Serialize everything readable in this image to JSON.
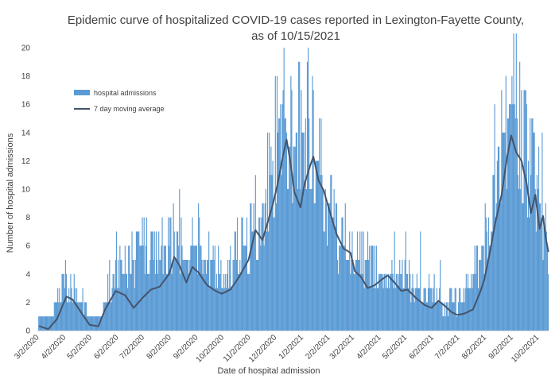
{
  "chart_data": {
    "type": "bar",
    "title_lines": [
      "Epidemic curve of hospitalized COVID-19 cases reported in Lexington-Fayette County,",
      "as of 10/15/2021"
    ],
    "xlabel": "Date of hospital admission",
    "ylabel": "Number of hospital admissions",
    "ylim": [
      0,
      20
    ],
    "y_ticks": [
      0,
      2,
      4,
      6,
      8,
      10,
      12,
      14,
      16,
      18,
      20
    ],
    "x_tick_labels": [
      "3/2/2020",
      "4/2/2020",
      "5/2/2020",
      "6/2/2020",
      "7/2/2020",
      "8/2/2020",
      "9/2/2020",
      "10/2/2020",
      "11/2/2020",
      "12/2/2020",
      "1/2/2021",
      "2/2/2021",
      "3/2/2021",
      "4/2/2021",
      "5/2/2021",
      "6/2/2021",
      "7/2/2021",
      "8/2/2021",
      "9/2/2021",
      "10/2/2021"
    ],
    "x_range": [
      "3/2/2020",
      "10/15/2021"
    ],
    "legend_position": "upper-left",
    "grid": false,
    "series": [
      {
        "name": "hospital admissions",
        "kind": "bar",
        "color": "#5b9bd5",
        "envelope": [
          [
            "3/2/2020",
            0
          ],
          [
            "3/5/2020",
            1
          ],
          [
            "3/20/2020",
            1
          ],
          [
            "4/2/2020",
            4
          ],
          [
            "4/10/2020",
            3
          ],
          [
            "4/25/2020",
            2
          ],
          [
            "5/2/2020",
            1
          ],
          [
            "5/15/2020",
            1
          ],
          [
            "5/25/2020",
            3
          ],
          [
            "6/2/2020",
            5
          ],
          [
            "6/15/2020",
            4
          ],
          [
            "7/2/2020",
            6
          ],
          [
            "7/15/2020",
            5
          ],
          [
            "8/2/2020",
            6
          ],
          [
            "8/10/2020",
            7
          ],
          [
            "8/20/2020",
            5
          ],
          [
            "9/2/2020",
            6
          ],
          [
            "9/15/2020",
            5
          ],
          [
            "10/2/2020",
            4
          ],
          [
            "10/15/2020",
            5
          ],
          [
            "11/2/2020",
            6
          ],
          [
            "11/15/2020",
            8
          ],
          [
            "12/2/2020",
            12
          ],
          [
            "12/10/2020",
            16
          ],
          [
            "12/20/2020",
            13
          ],
          [
            "1/2/2021",
            14
          ],
          [
            "1/10/2021",
            15
          ],
          [
            "1/20/2021",
            12
          ],
          [
            "2/2/2021",
            9
          ],
          [
            "2/15/2021",
            6
          ],
          [
            "3/2/2021",
            5
          ],
          [
            "3/15/2021",
            5
          ],
          [
            "4/2/2021",
            4
          ],
          [
            "4/15/2021",
            4
          ],
          [
            "5/2/2021",
            4
          ],
          [
            "5/15/2021",
            3
          ],
          [
            "6/2/2021",
            3
          ],
          [
            "6/15/2021",
            2
          ],
          [
            "7/2/2021",
            2
          ],
          [
            "7/15/2021",
            3
          ],
          [
            "8/2/2021",
            6
          ],
          [
            "8/15/2021",
            12
          ],
          [
            "9/2/2021",
            16
          ],
          [
            "9/10/2021",
            15
          ],
          [
            "9/20/2021",
            12
          ],
          [
            "10/2/2021",
            10
          ],
          [
            "10/15/2021",
            6
          ]
        ],
        "peaks": [
          [
            "4/2/2020",
            4
          ],
          [
            "5/25/2020",
            5
          ],
          [
            "6/20/2020",
            7
          ],
          [
            "7/25/2020",
            8
          ],
          [
            "8/14/2020",
            10
          ],
          [
            "8/29/2020",
            8
          ],
          [
            "9/5/2020",
            9
          ],
          [
            "10/20/2020",
            8
          ],
          [
            "11/10/2020",
            11
          ],
          [
            "11/28/2020",
            13
          ],
          [
            "12/3/2020",
            18
          ],
          [
            "12/12/2020",
            17
          ],
          [
            "12/22/2020",
            17
          ],
          [
            "1/2/2021",
            17
          ],
          [
            "1/9/2021",
            19
          ],
          [
            "1/16/2021",
            17
          ],
          [
            "1/26/2021",
            11
          ],
          [
            "2/22/2021",
            9
          ],
          [
            "3/20/2021",
            7
          ],
          [
            "4/20/2021",
            7
          ],
          [
            "5/3/2021",
            7
          ],
          [
            "5/20/2021",
            7
          ],
          [
            "6/12/2021",
            5
          ],
          [
            "7/22/2021",
            6
          ],
          [
            "8/4/2021",
            8
          ],
          [
            "8/22/2021",
            17
          ],
          [
            "8/27/2021",
            18
          ],
          [
            "9/3/2021",
            18
          ],
          [
            "9/14/2021",
            17
          ],
          [
            "9/20/2021",
            16
          ],
          [
            "10/2/2021",
            11
          ],
          [
            "10/8/2021",
            14
          ]
        ]
      },
      {
        "name": "7 day moving average",
        "kind": "line",
        "color": "#44546a",
        "points": [
          [
            "3/5/2020",
            0.3
          ],
          [
            "3/15/2020",
            0.1
          ],
          [
            "3/25/2020",
            0.8
          ],
          [
            "4/5/2020",
            2.4
          ],
          [
            "4/12/2020",
            2.2
          ],
          [
            "4/22/2020",
            1.3
          ],
          [
            "5/2/2020",
            0.4
          ],
          [
            "5/12/2020",
            0.3
          ],
          [
            "5/20/2020",
            1.5
          ],
          [
            "6/1/2020",
            2.8
          ],
          [
            "6/12/2020",
            2.5
          ],
          [
            "6/22/2020",
            1.6
          ],
          [
            "7/2/2020",
            2.3
          ],
          [
            "7/12/2020",
            2.9
          ],
          [
            "7/22/2020",
            3.1
          ],
          [
            "8/2/2020",
            4.0
          ],
          [
            "8/8/2020",
            5.2
          ],
          [
            "8/14/2020",
            4.6
          ],
          [
            "8/22/2020",
            3.4
          ],
          [
            "8/29/2020",
            4.5
          ],
          [
            "9/5/2020",
            4.1
          ],
          [
            "9/15/2020",
            3.2
          ],
          [
            "9/25/2020",
            2.8
          ],
          [
            "10/2/2020",
            2.6
          ],
          [
            "10/12/2020",
            2.9
          ],
          [
            "10/22/2020",
            3.8
          ],
          [
            "11/2/2020",
            5.0
          ],
          [
            "11/10/2020",
            7.1
          ],
          [
            "11/18/2020",
            6.4
          ],
          [
            "11/23/2020",
            7.4
          ],
          [
            "11/30/2020",
            8.9
          ],
          [
            "12/5/2020",
            10.2
          ],
          [
            "12/12/2020",
            12.4
          ],
          [
            "12/16/2020",
            13.5
          ],
          [
            "12/20/2020",
            12.1
          ],
          [
            "12/25/2020",
            9.8
          ],
          [
            "1/1/2021",
            8.7
          ],
          [
            "1/6/2021",
            10.4
          ],
          [
            "1/12/2021",
            11.6
          ],
          [
            "1/16/2021",
            12.3
          ],
          [
            "1/22/2021",
            10.6
          ],
          [
            "1/28/2021",
            9.9
          ],
          [
            "2/5/2021",
            8.2
          ],
          [
            "2/12/2021",
            6.8
          ],
          [
            "2/20/2021",
            5.8
          ],
          [
            "2/28/2021",
            5.5
          ],
          [
            "3/5/2021",
            4.2
          ],
          [
            "3/12/2021",
            3.8
          ],
          [
            "3/20/2021",
            3.0
          ],
          [
            "3/28/2021",
            3.2
          ],
          [
            "4/5/2021",
            3.6
          ],
          [
            "4/12/2021",
            3.9
          ],
          [
            "4/20/2021",
            3.4
          ],
          [
            "4/28/2021",
            2.8
          ],
          [
            "5/5/2021",
            2.9
          ],
          [
            "5/15/2021",
            2.3
          ],
          [
            "5/25/2021",
            1.8
          ],
          [
            "6/2/2021",
            1.6
          ],
          [
            "6/10/2021",
            2.1
          ],
          [
            "6/18/2021",
            1.7
          ],
          [
            "6/25/2021",
            1.3
          ],
          [
            "7/2/2021",
            1.1
          ],
          [
            "7/10/2021",
            1.2
          ],
          [
            "7/20/2021",
            1.5
          ],
          [
            "7/28/2021",
            2.7
          ],
          [
            "8/2/2021",
            3.6
          ],
          [
            "8/8/2021",
            5.4
          ],
          [
            "8/15/2021",
            7.7
          ],
          [
            "8/22/2021",
            9.6
          ],
          [
            "8/28/2021",
            12.1
          ],
          [
            "9/2/2021",
            13.8
          ],
          [
            "9/8/2021",
            12.6
          ],
          [
            "9/14/2021",
            12.0
          ],
          [
            "9/20/2021",
            10.4
          ],
          [
            "9/25/2021",
            8.3
          ],
          [
            "9/30/2021",
            9.6
          ],
          [
            "10/5/2021",
            7.2
          ],
          [
            "10/9/2021",
            8.1
          ],
          [
            "10/12/2021",
            6.6
          ],
          [
            "10/15/2021",
            5.6
          ]
        ]
      }
    ]
  }
}
